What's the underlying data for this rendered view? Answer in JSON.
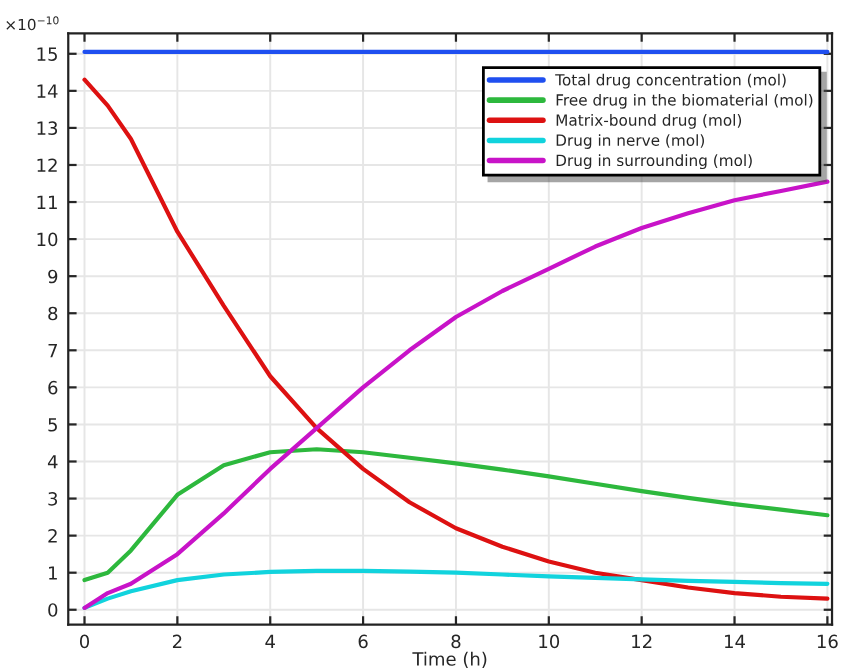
{
  "chart_data": {
    "type": "line",
    "xlabel": "Time (h)",
    "annotations": [
      "×10$^{−10}$"
    ],
    "x": [
      0,
      0.5,
      1,
      2,
      3,
      4,
      5,
      6,
      7,
      8,
      9,
      10,
      11,
      12,
      13,
      14,
      15,
      16
    ],
    "series": [
      {
        "name": "Total drug concentration (mol)",
        "color": "#1f4ff0",
        "values": [
          15.05,
          15.05,
          15.05,
          15.05,
          15.05,
          15.05,
          15.05,
          15.05,
          15.05,
          15.05,
          15.05,
          15.05,
          15.05,
          15.05,
          15.05,
          15.05,
          15.05,
          15.05
        ]
      },
      {
        "name": "Free drug in the biomaterial (mol)",
        "color": "#2db83d",
        "values": [
          0.8,
          1.0,
          1.6,
          3.1,
          3.9,
          4.25,
          4.33,
          4.25,
          4.1,
          3.95,
          3.78,
          3.6,
          3.4,
          3.2,
          3.02,
          2.85,
          2.7,
          2.55
        ]
      },
      {
        "name": "Matrix-bound drug (mol)",
        "color": "#dd1111",
        "values": [
          14.3,
          13.6,
          12.7,
          10.2,
          8.2,
          6.3,
          4.9,
          3.8,
          2.9,
          2.2,
          1.7,
          1.3,
          1.0,
          0.8,
          0.6,
          0.45,
          0.35,
          0.3
        ]
      },
      {
        "name": "Drug in nerve (mol)",
        "color": "#11d3dd",
        "values": [
          0.05,
          0.3,
          0.5,
          0.8,
          0.95,
          1.02,
          1.05,
          1.05,
          1.03,
          1.0,
          0.95,
          0.9,
          0.86,
          0.82,
          0.78,
          0.75,
          0.72,
          0.7
        ]
      },
      {
        "name": "Drug in surrounding (mol)",
        "color": "#c813c8",
        "values": [
          0.05,
          0.45,
          0.7,
          1.5,
          2.6,
          3.8,
          4.9,
          6.0,
          7.0,
          7.9,
          8.6,
          9.2,
          9.8,
          10.3,
          10.7,
          11.05,
          11.3,
          11.55
        ]
      }
    ],
    "xlim": [
      -0.35,
      16.1
    ],
    "ylim": [
      -0.4,
      15.55
    ],
    "xticks": [
      0,
      2,
      4,
      6,
      8,
      10,
      12,
      14,
      16
    ],
    "yticks": [
      0,
      1,
      2,
      3,
      4,
      5,
      6,
      7,
      8,
      9,
      10,
      11,
      12,
      13,
      14,
      15
    ],
    "grid": true,
    "legend": "top right",
    "marker": "none",
    "line_style": "solid"
  }
}
